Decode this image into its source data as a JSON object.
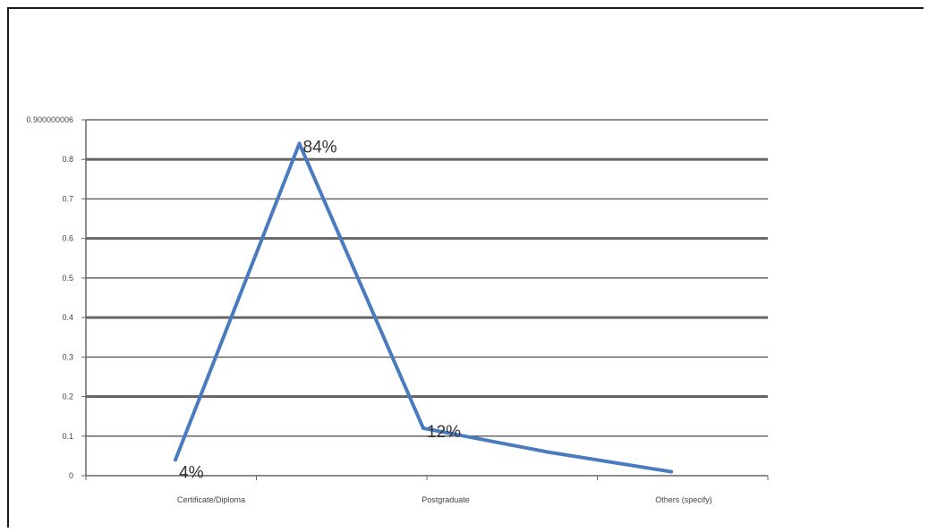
{
  "chart_data": {
    "type": "line",
    "categories": [
      "Certificate/Diploma",
      "",
      "Postgraduate",
      "",
      "Others (specify)"
    ],
    "series": [
      {
        "values": [
          0.04,
          0.84,
          0.12,
          0.06,
          0.01
        ],
        "color": "#4a7bbf"
      }
    ],
    "data_labels": [
      {
        "index": 0,
        "text": "4%"
      },
      {
        "index": 1,
        "text": "84%"
      },
      {
        "index": 2,
        "text": "12%"
      }
    ],
    "y_ticks": [
      {
        "value": 0,
        "label": "0"
      },
      {
        "value": 0.1,
        "label": "0.1"
      },
      {
        "value": 0.2,
        "label": "0.2"
      },
      {
        "value": 0.3,
        "label": "0.3"
      },
      {
        "value": 0.4,
        "label": "0.4"
      },
      {
        "value": 0.5,
        "label": "0.5"
      },
      {
        "value": 0.6,
        "label": "0.6"
      },
      {
        "value": 0.7,
        "label": "0.7"
      },
      {
        "value": 0.8,
        "label": "0.8"
      },
      {
        "value": 0.9,
        "label": "0.900000006"
      }
    ],
    "ylim": [
      0,
      0.9
    ],
    "grid": true,
    "gridline_color": "#666666",
    "title": "",
    "xlabel": "",
    "ylabel": ""
  }
}
